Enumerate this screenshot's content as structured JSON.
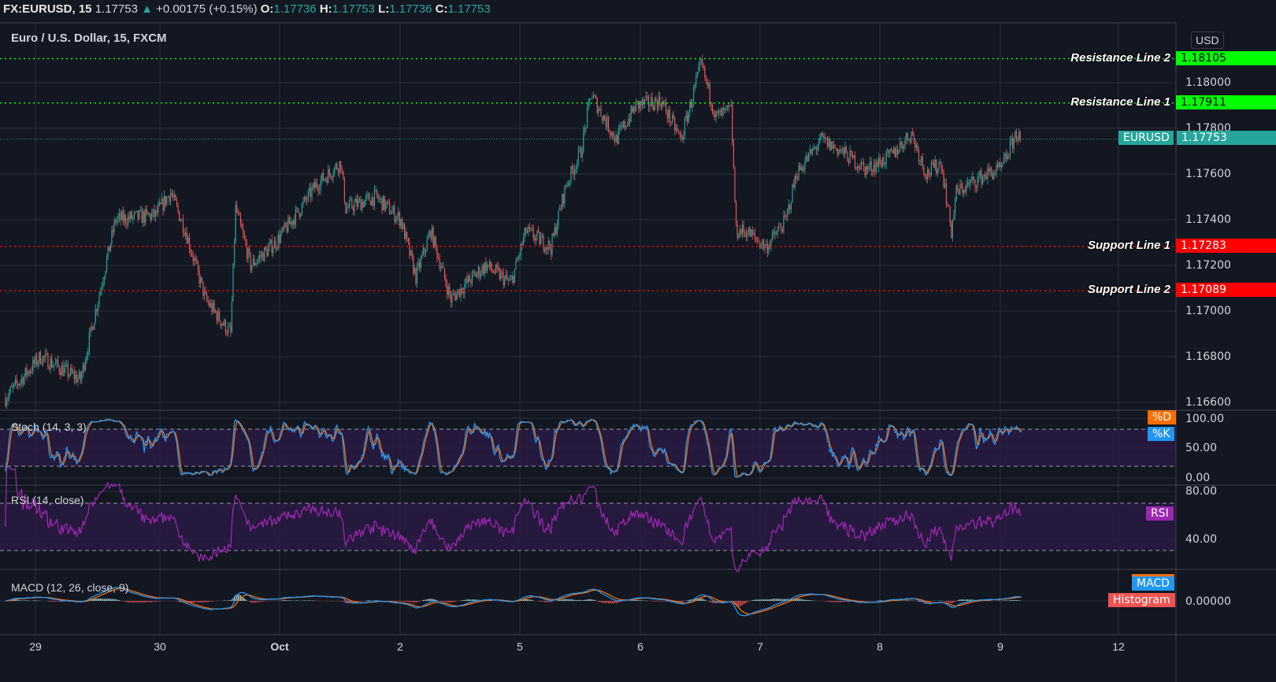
{
  "header": {
    "symbol": "FX:EURUSD, 15",
    "price": "1.17753",
    "change": "+0.00175 (+0.15%)",
    "o_label": "O:",
    "o": "1.17736",
    "h_label": "H:",
    "h": "1.17753",
    "l_label": "L:",
    "l": "1.17736",
    "c_label": "C:",
    "c": "1.17753"
  },
  "main": {
    "title": "Euro / U.S. Dollar, 15, FXCM",
    "currency": "USD",
    "symbol_tag": "EURUSD",
    "last_price": "1.17753"
  },
  "levels": [
    {
      "label": "Resistance Line 2",
      "value": "1.18105",
      "color": "#00ff00"
    },
    {
      "label": "Resistance Line 1",
      "value": "1.17911",
      "color": "#00ff00"
    },
    {
      "label": "Support Line 1",
      "value": "1.17283",
      "color": "#ff0000"
    },
    {
      "label": "Support Line 2",
      "value": "1.17089",
      "color": "#ff0000"
    }
  ],
  "indicators": {
    "stoch": {
      "title": "Stoch (14, 3, 3)",
      "d_label": "%D",
      "k_label": "%K",
      "ticks": [
        "100.00",
        "50.00",
        "0.00"
      ],
      "d_color": "#ff6d00",
      "k_color": "#2196f3"
    },
    "rsi": {
      "title": "RSI (14, close)",
      "label": "RSI",
      "ticks": [
        "80.00",
        "40.00"
      ],
      "color": "#9c27b0"
    },
    "macd": {
      "title": "MACD (12, 26, close, 9)",
      "macd_label": "MACD",
      "hist_label": "Histogram",
      "ticks": [
        "0.00000"
      ],
      "macd_color": "#2196f3",
      "signal_color": "#ff6d00",
      "hist_color": "#ef5350"
    }
  },
  "chart_data": {
    "type": "candlestick",
    "interval": "15",
    "price_ticks": [
      "1.18000",
      "1.17800",
      "1.17600",
      "1.17400",
      "1.17200",
      "1.17000",
      "1.16800",
      "1.16600"
    ],
    "ylim": [
      1.1659,
      1.1822
    ],
    "x_ticks": [
      "29",
      "30",
      "Oct",
      "2",
      "5",
      "6",
      "7",
      "8",
      "9",
      "12"
    ],
    "up_color": "#26a69a",
    "down_color": "#ef5350",
    "close_path": [
      [
        "Sep 28 18:00",
        1.1662
      ],
      [
        "Sep 29 01:00",
        1.168
      ],
      [
        "Sep 29 09:00",
        1.167
      ],
      [
        "Sep 29 13:00",
        1.171
      ],
      [
        "Sep 29 16:00",
        1.174
      ],
      [
        "Sep 30 00:00",
        1.1742
      ],
      [
        "Sep 30 03:00",
        1.1752
      ],
      [
        "Sep 30 06:00",
        1.1735
      ],
      [
        "Sep 30 10:00",
        1.1705
      ],
      [
        "Sep 30 15:00",
        1.169
      ],
      [
        "Sep 30 16:00",
        1.1745
      ],
      [
        "Sep 30 19:00",
        1.172
      ],
      [
        "Oct 1 00:00",
        1.173
      ],
      [
        "Oct 1 05:00",
        1.1745
      ],
      [
        "Oct 1 08:00",
        1.1755
      ],
      [
        "Oct 1 13:00",
        1.1765
      ],
      [
        "Oct 1 14:00",
        1.1745
      ],
      [
        "Oct 1 20:00",
        1.175
      ],
      [
        "Oct 2 01:00",
        1.174
      ],
      [
        "Oct 2 04:00",
        1.1715
      ],
      [
        "Oct 2 07:00",
        1.1735
      ],
      [
        "Oct 2 11:00",
        1.1705
      ],
      [
        "Oct 2 14:00",
        1.1712
      ],
      [
        "Oct 2 18:00",
        1.172
      ],
      [
        "Oct 2 23:00",
        1.1712
      ],
      [
        "Oct 5 02:00",
        1.1735
      ],
      [
        "Oct 5 07:00",
        1.1728
      ],
      [
        "Oct 5 10:00",
        1.1755
      ],
      [
        "Oct 5 13:00",
        1.177
      ],
      [
        "Oct 5 15:00",
        1.1795
      ],
      [
        "Oct 5 20:00",
        1.1775
      ],
      [
        "Oct 6 00:00",
        1.179
      ],
      [
        "Oct 6 05:00",
        1.1792
      ],
      [
        "Oct 6 09:00",
        1.1775
      ],
      [
        "Oct 6 13:00",
        1.1808
      ],
      [
        "Oct 6 16:00",
        1.1785
      ],
      [
        "Oct 6 19:00",
        1.1788
      ],
      [
        "Oct 6 20:00",
        1.1735
      ],
      [
        "Oct 6 22:00",
        1.1735
      ],
      [
        "Oct 7 02:00",
        1.1728
      ],
      [
        "Oct 7 06:00",
        1.174
      ],
      [
        "Oct 7 08:00",
        1.176
      ],
      [
        "Oct 7 13:00",
        1.1775
      ],
      [
        "Oct 7 17:00",
        1.177
      ],
      [
        "Oct 7 22:00",
        1.1762
      ],
      [
        "Oct 8 03:00",
        1.1768
      ],
      [
        "Oct 8 07:00",
        1.1778
      ],
      [
        "Oct 8 10:00",
        1.176
      ],
      [
        "Oct 8 13:00",
        1.1765
      ],
      [
        "Oct 8 15:00",
        1.1735
      ],
      [
        "Oct 8 16:00",
        1.1752
      ],
      [
        "Oct 8 22:00",
        1.176
      ],
      [
        "Oct 9 01:00",
        1.1762
      ],
      [
        "Oct 9 04:00",
        1.1778
      ],
      [
        "Oct 9 05:00",
        1.17753
      ]
    ]
  }
}
